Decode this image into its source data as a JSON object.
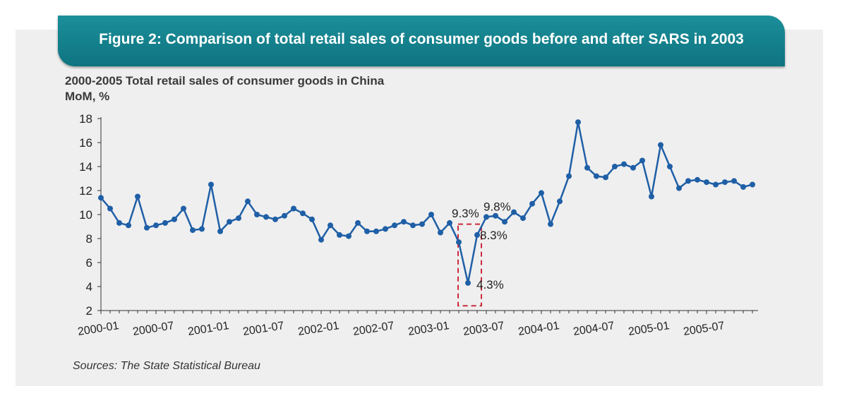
{
  "figure": {
    "banner_title": "Figure 2: Comparison of total retail sales of consumer goods before and after SARS in 2003",
    "source": "Sources: The State Statistical Bureau",
    "colors": {
      "banner": "#14838f",
      "line": "#1f5fa6",
      "highlight": "#cc2a3c",
      "panel": "#efefef"
    }
  },
  "chart_data": {
    "type": "line",
    "title": "2000-2005 Total retail sales of consumer goods in China",
    "ylabel": "MoM, %",
    "xlabel": "",
    "ylim": [
      2,
      18
    ],
    "yticks": [
      2,
      4,
      6,
      8,
      10,
      12,
      14,
      16,
      18
    ],
    "xtick_labels": [
      "2000-01",
      "2000-07",
      "2001-01",
      "2001-07",
      "2002-01",
      "2002-07",
      "2003-01",
      "2003-07",
      "2004-01",
      "2004-07",
      "2005-01",
      "2005-07"
    ],
    "xtick_every": 6,
    "grid": false,
    "series": [
      {
        "name": "Total retail sales of consumer goods MoM",
        "values": [
          11.4,
          10.5,
          9.3,
          9.1,
          11.5,
          8.9,
          9.1,
          9.3,
          9.6,
          10.5,
          8.7,
          8.8,
          12.5,
          8.6,
          9.4,
          9.7,
          11.1,
          10.0,
          9.8,
          9.6,
          9.9,
          10.5,
          10.1,
          9.6,
          7.9,
          9.1,
          8.3,
          8.2,
          9.3,
          8.6,
          8.6,
          8.8,
          9.1,
          9.4,
          9.1,
          9.2,
          10.0,
          8.5,
          9.3,
          7.7,
          4.3,
          8.3,
          9.8,
          9.9,
          9.4,
          10.2,
          9.7,
          10.9,
          11.8,
          9.2,
          11.1,
          13.2,
          17.7,
          13.9,
          13.2,
          13.1,
          14.0,
          14.2,
          13.9,
          14.5,
          11.5,
          15.8,
          14.0,
          12.2,
          12.8,
          12.9,
          12.7,
          12.5,
          12.7,
          12.8,
          12.3,
          12.5
        ]
      }
    ],
    "annotations": [
      {
        "text": "9.3%",
        "index": 38
      },
      {
        "text": "9.8%",
        "index": 42
      },
      {
        "text": "8.3%",
        "index": 41
      },
      {
        "text": "4.3%",
        "index": 40
      }
    ],
    "highlight_range": [
      40,
      41
    ]
  }
}
